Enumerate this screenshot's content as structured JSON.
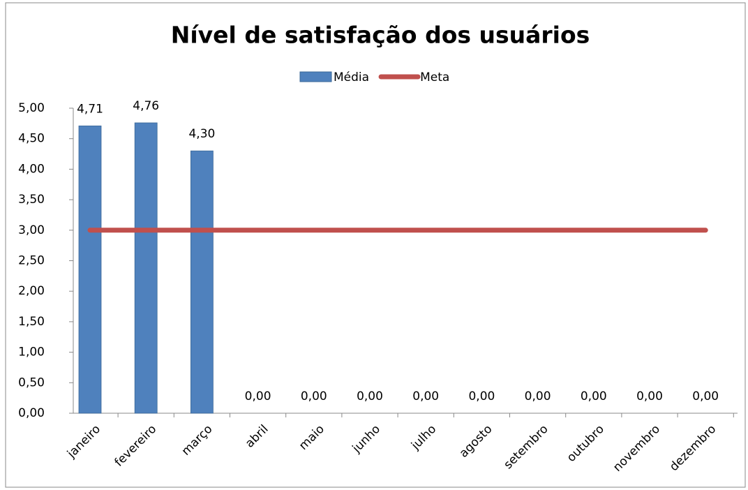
{
  "chart_data": {
    "type": "bar",
    "title": "Nível de satisfação dos usuários",
    "categories": [
      "janeiro",
      "fevereiro",
      "março",
      "abril",
      "maio",
      "junho",
      "julho",
      "agosto",
      "setembro",
      "outubro",
      "novembro",
      "dezembro"
    ],
    "series": [
      {
        "name": "Média",
        "type": "bar",
        "color": "#4f81bd",
        "values": [
          4.71,
          4.76,
          4.3,
          0,
          0,
          0,
          0,
          0,
          0,
          0,
          0,
          0
        ],
        "value_labels": [
          "4,71",
          "4,76",
          "4,30",
          "0,00",
          "0,00",
          "0,00",
          "0,00",
          "0,00",
          "0,00",
          "0,00",
          "0,00",
          "0,00"
        ]
      },
      {
        "name": "Meta",
        "type": "line",
        "color": "#c0504d",
        "values": [
          3,
          3,
          3,
          3,
          3,
          3,
          3,
          3,
          3,
          3,
          3,
          3
        ]
      }
    ],
    "ylim": [
      0,
      5
    ],
    "yticks": [
      {
        "value": 0,
        "label": "0,00"
      },
      {
        "value": 0.5,
        "label": "0,50"
      },
      {
        "value": 1,
        "label": "1,00"
      },
      {
        "value": 1.5,
        "label": "1,50"
      },
      {
        "value": 2,
        "label": "2,00"
      },
      {
        "value": 2.5,
        "label": "2,50"
      },
      {
        "value": 3,
        "label": "3,00"
      },
      {
        "value": 3.5,
        "label": "3,50"
      },
      {
        "value": 4,
        "label": "4,00"
      },
      {
        "value": 4.5,
        "label": "4,50"
      },
      {
        "value": 5,
        "label": "5,00"
      }
    ],
    "legend": "top",
    "grid": false
  }
}
